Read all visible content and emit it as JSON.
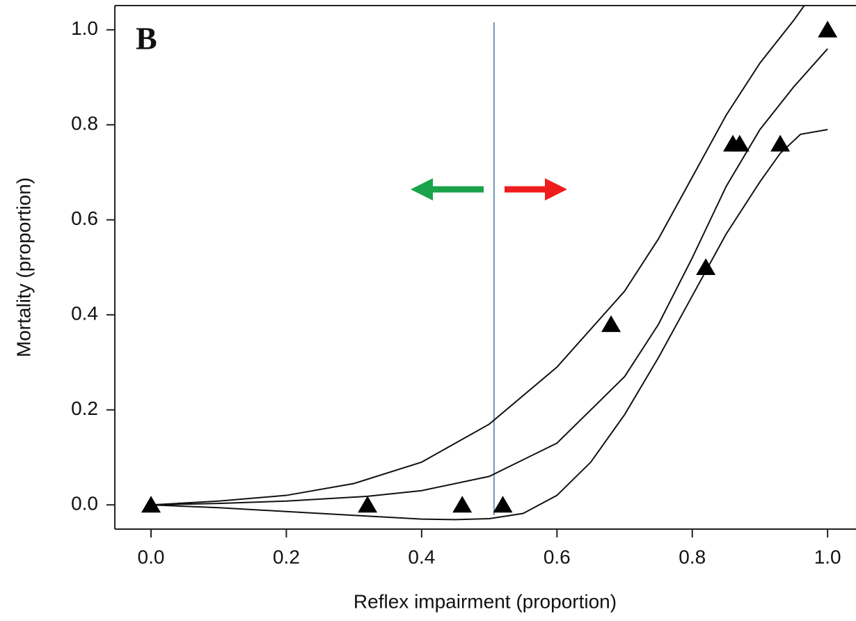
{
  "chart_data": {
    "type": "line",
    "panel_label": "B",
    "x_label": "Reflex impairment (proportion)",
    "y_label": "Mortality (proportion)",
    "xlim": [
      -0.0535,
      1.042
    ],
    "ylim": [
      -0.051,
      1.051
    ],
    "xticks": [
      {
        "value": 0,
        "label": "0.0"
      },
      0.2,
      0.4,
      0.6,
      0.8,
      {
        "value": 1,
        "label": "1.0"
      }
    ],
    "yticks": [
      {
        "value": 0,
        "label": "0.0"
      },
      0.2,
      0.4,
      0.6,
      0.8,
      {
        "value": 1,
        "label": "1.0"
      }
    ],
    "series": [
      {
        "color": "#111111",
        "x": [
          0,
          0.1,
          0.2,
          0.3,
          0.4,
          0.5,
          0.6,
          0.7,
          0.75,
          0.8,
          0.85,
          0.9,
          0.95,
          0.98
        ],
        "values": [
          0,
          0.008,
          0.02,
          0.045,
          0.09,
          0.17,
          0.29,
          0.45,
          0.56,
          0.69,
          0.82,
          0.93,
          1.02,
          1.08
        ]
      },
      {
        "color": "#111111",
        "x": [
          0,
          0.1,
          0.2,
          0.32,
          0.4,
          0.5,
          0.6,
          0.7,
          0.75,
          0.8,
          0.85,
          0.9,
          0.95,
          1.0
        ],
        "values": [
          0,
          0.003,
          0.008,
          0.018,
          0.03,
          0.06,
          0.13,
          0.27,
          0.38,
          0.52,
          0.67,
          0.79,
          0.88,
          0.96
        ]
      },
      {
        "color": "#111111",
        "x": [
          0,
          0.1,
          0.2,
          0.3,
          0.4,
          0.45,
          0.5,
          0.55,
          0.6,
          0.65,
          0.7,
          0.75,
          0.8,
          0.85,
          0.9,
          0.93,
          0.96,
          1.0
        ],
        "values": [
          0,
          -0.006,
          -0.014,
          -0.022,
          -0.03,
          -0.031,
          -0.029,
          -0.018,
          0.02,
          0.09,
          0.19,
          0.31,
          0.44,
          0.57,
          0.68,
          0.74,
          0.78,
          0.79
        ]
      }
    ],
    "points": {
      "color": "#000000",
      "x": [
        0,
        0.32,
        0.46,
        0.52,
        0.68,
        0.82,
        0.86,
        0.87,
        0.93,
        1.0
      ],
      "values": [
        0,
        0,
        0,
        0,
        0.38,
        0.5,
        0.76,
        0.76,
        0.76,
        1.0
      ]
    },
    "reference_line": {
      "x": 0.507,
      "color": "#4a6fa5"
    }
  }
}
